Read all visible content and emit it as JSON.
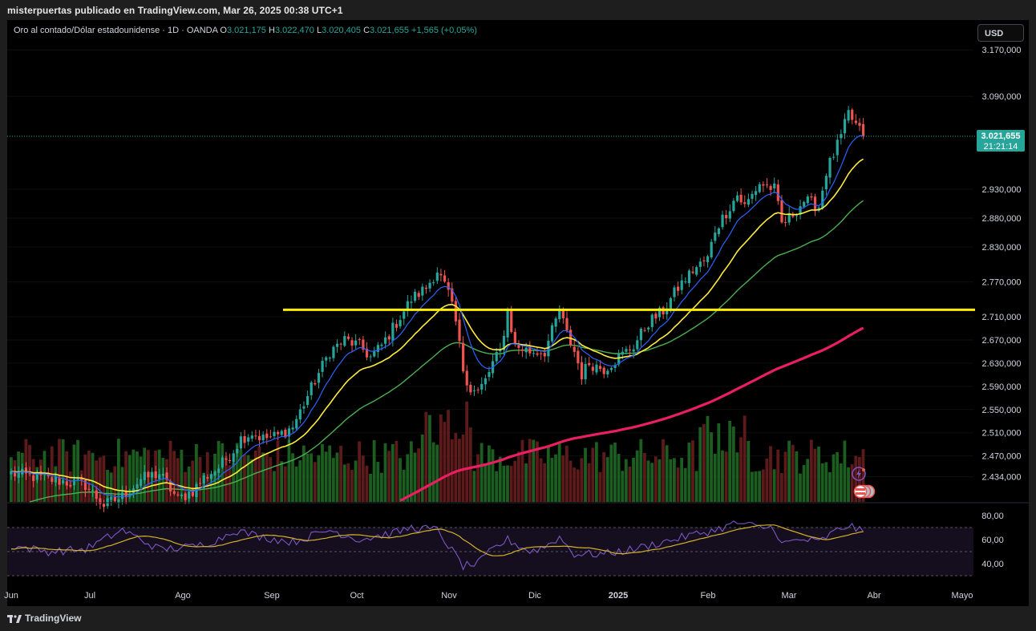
{
  "caption": "misterpuertas publicado en TradingView.com, Mar 26, 2025 00:38 UTC+1",
  "legend": {
    "instrument": "Oro al contado/Dólar estadounidense · 1D · OANDA",
    "o_label": "O",
    "o_value": "3.021,175",
    "h_label": "H",
    "h_value": "3.022,470",
    "l_label": "L",
    "l_value": "3.020,405",
    "c_label": "C",
    "c_value": "3.021,655",
    "change": "+1,565 (+0,05%)"
  },
  "currency_button": "USD",
  "last_price": {
    "value": "3.021,655",
    "countdown": "21:21:14"
  },
  "footer": {
    "brand": "TradingView"
  },
  "colors": {
    "up": "#26a69a",
    "down": "#ef5350",
    "vol_up": "#1b5e20",
    "vol_down": "#5d1a1a",
    "ema_blue": "#2962ff",
    "ema_yellow": "#ffeb3b",
    "ema_green": "#4caf50",
    "ema_red": "#e91e63",
    "hline": "#ffee00",
    "rsi": "#7e57c2",
    "rsi_ma": "#d4b02b"
  },
  "chart_data": {
    "type": "candlestick",
    "y_ticks": [
      "3.170,000",
      "3.090,000",
      "2.930,000",
      "2.880,000",
      "2.830,000",
      "2.770,000",
      "2.710,000",
      "2.670,000",
      "2.630,000",
      "2.590,000",
      "2.550,000",
      "2.510,000",
      "2.470,000",
      "2.434,000"
    ],
    "x_ticks": [
      "Jun",
      "Jul",
      "Ago",
      "Sep",
      "Oct",
      "Nov",
      "Dic",
      "2025",
      "Feb",
      "Mar",
      "Abr",
      "Mayo"
    ],
    "horizontal_line": 2722,
    "rsi_ticks": [
      "80,00",
      "60,00",
      "40,00"
    ],
    "rsi_bands": [
      70,
      50,
      30
    ],
    "close_anchors": [
      [
        0,
        2440
      ],
      [
        20,
        2420
      ],
      [
        25,
        2385
      ],
      [
        30,
        2400
      ],
      [
        35,
        2430
      ],
      [
        40,
        2440
      ],
      [
        45,
        2395
      ],
      [
        49,
        2410
      ],
      [
        52,
        2432
      ],
      [
        56,
        2450
      ],
      [
        60,
        2480
      ],
      [
        62,
        2500
      ],
      [
        65,
        2510
      ],
      [
        68,
        2500
      ],
      [
        72,
        2505
      ],
      [
        76,
        2520
      ],
      [
        79,
        2560
      ],
      [
        82,
        2600
      ],
      [
        86,
        2650
      ],
      [
        90,
        2670
      ],
      [
        94,
        2660
      ],
      [
        97,
        2640
      ],
      [
        100,
        2660
      ],
      [
        104,
        2700
      ],
      [
        108,
        2740
      ],
      [
        112,
        2760
      ],
      [
        115,
        2790
      ],
      [
        118,
        2750
      ],
      [
        120,
        2700
      ],
      [
        122,
        2620
      ],
      [
        124,
        2585
      ],
      [
        126,
        2580
      ],
      [
        128,
        2600
      ],
      [
        130,
        2630
      ],
      [
        132,
        2650
      ],
      [
        134,
        2720
      ],
      [
        136,
        2660
      ],
      [
        140,
        2650
      ],
      [
        144,
        2650
      ],
      [
        148,
        2720
      ],
      [
        150,
        2680
      ],
      [
        152,
        2650
      ],
      [
        154,
        2610
      ],
      [
        156,
        2630
      ],
      [
        160,
        2620
      ],
      [
        164,
        2640
      ],
      [
        168,
        2660
      ],
      [
        172,
        2700
      ],
      [
        176,
        2720
      ],
      [
        180,
        2760
      ],
      [
        184,
        2790
      ],
      [
        188,
        2810
      ],
      [
        190,
        2860
      ],
      [
        192,
        2880
      ],
      [
        196,
        2920
      ],
      [
        198,
        2900
      ],
      [
        202,
        2940
      ],
      [
        206,
        2930
      ],
      [
        208,
        2870
      ],
      [
        210,
        2880
      ],
      [
        214,
        2910
      ],
      [
        218,
        2900
      ],
      [
        220,
        2960
      ],
      [
        224,
        3020
      ],
      [
        226,
        3060
      ],
      [
        228,
        3040
      ],
      [
        230,
        3021
      ]
    ],
    "rsi_anchors": [
      [
        0,
        55
      ],
      [
        10,
        50
      ],
      [
        20,
        52
      ],
      [
        30,
        68
      ],
      [
        40,
        52
      ],
      [
        49,
        54
      ],
      [
        56,
        60
      ],
      [
        60,
        68
      ],
      [
        68,
        62
      ],
      [
        76,
        58
      ],
      [
        86,
        68
      ],
      [
        94,
        60
      ],
      [
        104,
        66
      ],
      [
        108,
        70
      ],
      [
        115,
        68
      ],
      [
        118,
        55
      ],
      [
        122,
        38
      ],
      [
        126,
        40
      ],
      [
        130,
        52
      ],
      [
        134,
        60
      ],
      [
        140,
        50
      ],
      [
        144,
        54
      ],
      [
        148,
        62
      ],
      [
        152,
        48
      ],
      [
        160,
        48
      ],
      [
        168,
        52
      ],
      [
        176,
        58
      ],
      [
        184,
        64
      ],
      [
        190,
        68
      ],
      [
        196,
        74
      ],
      [
        202,
        70
      ],
      [
        206,
        70
      ],
      [
        208,
        56
      ],
      [
        210,
        58
      ],
      [
        214,
        60
      ],
      [
        218,
        58
      ],
      [
        222,
        66
      ],
      [
        226,
        72
      ],
      [
        230,
        66
      ]
    ]
  }
}
